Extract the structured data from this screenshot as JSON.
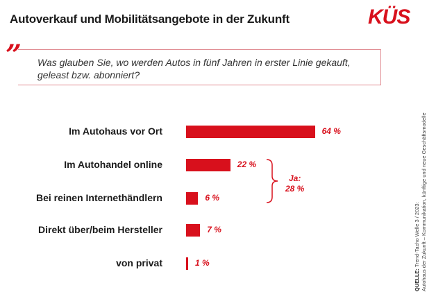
{
  "header": {
    "title": "Autoverkauf und Mobilitätsangebote in der Zukunft",
    "logo": "KÜS"
  },
  "question": "Was glauben Sie, wo werden Autos in fünf Jahren in erster Linie gekauft, geleast bzw. abonniert?",
  "chart_data": {
    "type": "bar",
    "orientation": "horizontal",
    "title": "Autoverkauf und Mobilitätsangebote in der Zukunft",
    "categories": [
      "Im Autohaus vor Ort",
      "Im Autohandel online",
      "Bei reinen Internethändlern",
      "Direkt über/beim Hersteller",
      "von privat"
    ],
    "values": [
      64,
      22,
      6,
      7,
      1
    ],
    "value_labels": [
      "64 %",
      "22 %",
      "6 %",
      "7 %",
      "1 %"
    ],
    "unit": "%",
    "xlim": [
      0,
      100
    ],
    "annotation": {
      "label": "Ja:",
      "value": "28 %",
      "groups": [
        "Im Autohandel online",
        "Bei reinen Internethändlern"
      ]
    }
  },
  "source": {
    "label": "QUELLE:",
    "line1": "Trend-Tacho Welle 3 / 2023:",
    "line2": "Autohaus der Zukunft – Kommunikation, künftige und neue Geschäftsmodelle"
  },
  "colors": {
    "accent": "#d8101c",
    "text": "#1a1a1a"
  }
}
